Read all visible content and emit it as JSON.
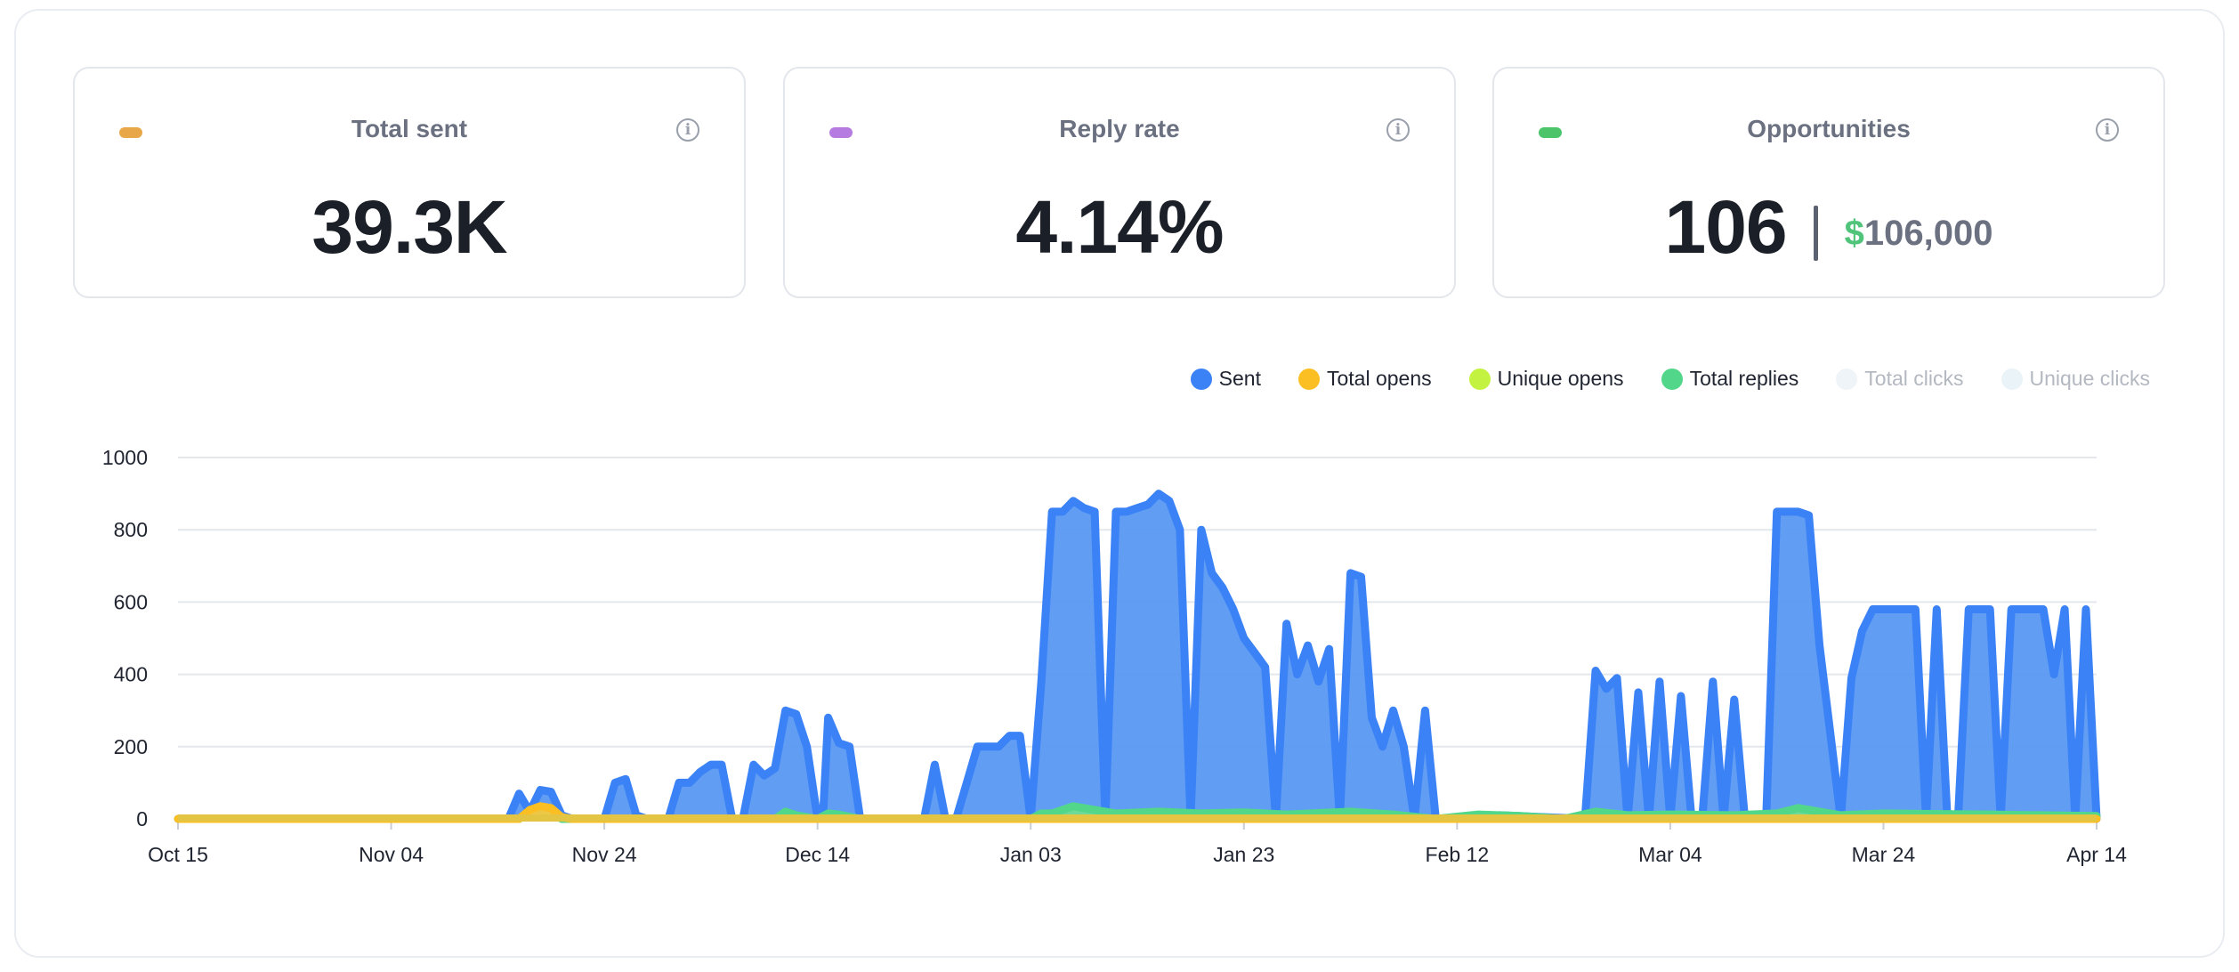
{
  "cards": [
    {
      "title": "Total sent",
      "value": "39.3K",
      "color": "#e8a84a"
    },
    {
      "title": "Reply rate",
      "value": "4.14%",
      "color": "#b57be0"
    },
    {
      "title": "Opportunities",
      "value": "106",
      "money_symbol": "$",
      "money_value": "106,000",
      "color": "#4cc46a"
    }
  ],
  "info_glyph": "i",
  "legend": [
    {
      "label": "Sent",
      "color": "#3b82f6",
      "active": true
    },
    {
      "label": "Total opens",
      "color": "#fbbf24",
      "active": true
    },
    {
      "label": "Unique opens",
      "color": "#c4f240",
      "active": true
    },
    {
      "label": "Total replies",
      "color": "#52d68a",
      "active": true
    },
    {
      "label": "Total clicks",
      "color": "#eef4f8",
      "active": false
    },
    {
      "label": "Unique clicks",
      "color": "#eaf3f8",
      "active": false
    }
  ],
  "chart_data": {
    "type": "area",
    "ylim": [
      0,
      1000
    ],
    "y_ticks": [
      0,
      200,
      400,
      600,
      800,
      1000
    ],
    "x_tick_labels": [
      "Oct 15",
      "Nov 04",
      "Nov 24",
      "Dec 14",
      "Jan 03",
      "Jan 23",
      "Feb 12",
      "Mar 04",
      "Mar 24",
      "Apr 14"
    ],
    "x_ticks_day": [
      0,
      20,
      40,
      60,
      80,
      100,
      120,
      140,
      160,
      180
    ],
    "grid": true,
    "legend_position": "top-right",
    "series": [
      {
        "name": "Sent",
        "color": "#3b82f6",
        "points": [
          [
            0,
            0
          ],
          [
            31,
            0
          ],
          [
            32,
            70
          ],
          [
            33,
            20
          ],
          [
            34,
            80
          ],
          [
            35,
            75
          ],
          [
            36,
            10
          ],
          [
            37,
            0
          ],
          [
            40,
            0
          ],
          [
            41,
            100
          ],
          [
            42,
            110
          ],
          [
            43,
            10
          ],
          [
            44,
            0
          ],
          [
            46,
            0
          ],
          [
            47,
            100
          ],
          [
            48,
            100
          ],
          [
            49,
            130
          ],
          [
            50,
            150
          ],
          [
            51,
            150
          ],
          [
            52,
            0
          ],
          [
            53,
            0
          ],
          [
            54,
            150
          ],
          [
            55,
            120
          ],
          [
            56,
            140
          ],
          [
            57,
            300
          ],
          [
            58,
            290
          ],
          [
            59,
            200
          ],
          [
            60,
            0
          ],
          [
            60.5,
            0
          ],
          [
            61,
            280
          ],
          [
            62,
            210
          ],
          [
            63,
            200
          ],
          [
            64,
            0
          ],
          [
            70,
            0
          ],
          [
            71,
            150
          ],
          [
            72,
            0
          ],
          [
            73,
            0
          ],
          [
            74,
            100
          ],
          [
            75,
            200
          ],
          [
            76,
            200
          ],
          [
            77,
            200
          ],
          [
            78,
            230
          ],
          [
            79,
            230
          ],
          [
            80,
            0
          ],
          [
            81,
            380
          ],
          [
            82,
            850
          ],
          [
            83,
            850
          ],
          [
            84,
            880
          ],
          [
            85,
            860
          ],
          [
            86,
            850
          ],
          [
            87,
            0
          ],
          [
            88,
            850
          ],
          [
            89,
            850
          ],
          [
            90,
            860
          ],
          [
            91,
            870
          ],
          [
            92,
            900
          ],
          [
            93,
            880
          ],
          [
            94,
            800
          ],
          [
            95,
            0
          ],
          [
            96,
            800
          ],
          [
            97,
            680
          ],
          [
            98,
            640
          ],
          [
            99,
            580
          ],
          [
            100,
            500
          ],
          [
            101,
            460
          ],
          [
            102,
            420
          ],
          [
            103,
            0
          ],
          [
            104,
            540
          ],
          [
            105,
            400
          ],
          [
            106,
            480
          ],
          [
            107,
            380
          ],
          [
            108,
            470
          ],
          [
            109,
            0
          ],
          [
            110,
            680
          ],
          [
            111,
            670
          ],
          [
            112,
            280
          ],
          [
            113,
            200
          ],
          [
            114,
            300
          ],
          [
            115,
            200
          ],
          [
            116,
            0
          ],
          [
            117,
            300
          ],
          [
            118,
            0
          ],
          [
            119,
            0
          ],
          [
            121,
            0
          ],
          [
            122,
            5
          ],
          [
            124,
            10
          ],
          [
            128,
            5
          ],
          [
            132,
            0
          ],
          [
            133,
            410
          ],
          [
            134,
            360
          ],
          [
            135,
            390
          ],
          [
            136,
            0
          ],
          [
            137,
            350
          ],
          [
            138,
            0
          ],
          [
            139,
            380
          ],
          [
            140,
            0
          ],
          [
            141,
            340
          ],
          [
            142,
            0
          ],
          [
            143,
            0
          ],
          [
            144,
            380
          ],
          [
            145,
            0
          ],
          [
            146,
            330
          ],
          [
            147,
            0
          ],
          [
            149,
            0
          ],
          [
            150,
            850
          ],
          [
            151,
            850
          ],
          [
            152,
            850
          ],
          [
            153,
            840
          ],
          [
            154,
            480
          ],
          [
            155,
            240
          ],
          [
            156,
            0
          ],
          [
            157,
            390
          ],
          [
            158,
            520
          ],
          [
            159,
            580
          ],
          [
            160,
            580
          ],
          [
            161,
            580
          ],
          [
            162,
            580
          ],
          [
            163,
            580
          ],
          [
            164,
            0
          ],
          [
            165,
            580
          ],
          [
            166,
            0
          ],
          [
            167,
            0
          ],
          [
            168,
            580
          ],
          [
            169,
            580
          ],
          [
            170,
            580
          ],
          [
            171,
            0
          ],
          [
            172,
            580
          ],
          [
            173,
            580
          ],
          [
            174,
            580
          ],
          [
            175,
            580
          ],
          [
            176,
            400
          ],
          [
            177,
            580
          ],
          [
            178,
            0
          ],
          [
            179,
            580
          ],
          [
            180,
            0
          ]
        ]
      },
      {
        "name": "Total replies",
        "color": "#52d68a",
        "points": [
          [
            0,
            0
          ],
          [
            32,
            0
          ],
          [
            33,
            20
          ],
          [
            34,
            25
          ],
          [
            35,
            18
          ],
          [
            36,
            0
          ],
          [
            56,
            0
          ],
          [
            57,
            20
          ],
          [
            58,
            10
          ],
          [
            60,
            0
          ],
          [
            61,
            15
          ],
          [
            62,
            12
          ],
          [
            64,
            0
          ],
          [
            80,
            0
          ],
          [
            81,
            15
          ],
          [
            82,
            15
          ],
          [
            84,
            35
          ],
          [
            86,
            25
          ],
          [
            88,
            15
          ],
          [
            92,
            20
          ],
          [
            96,
            15
          ],
          [
            100,
            18
          ],
          [
            104,
            12
          ],
          [
            110,
            20
          ],
          [
            114,
            12
          ],
          [
            118,
            0
          ],
          [
            122,
            12
          ],
          [
            126,
            8
          ],
          [
            130,
            0
          ],
          [
            133,
            20
          ],
          [
            136,
            10
          ],
          [
            140,
            12
          ],
          [
            146,
            10
          ],
          [
            150,
            15
          ],
          [
            152,
            30
          ],
          [
            154,
            20
          ],
          [
            156,
            10
          ],
          [
            160,
            15
          ],
          [
            170,
            12
          ],
          [
            180,
            8
          ]
        ]
      },
      {
        "name": "Total opens",
        "color": "#fbbf24",
        "points": [
          [
            0,
            0
          ],
          [
            32,
            0
          ],
          [
            33,
            25
          ],
          [
            34,
            35
          ],
          [
            35,
            30
          ],
          [
            36,
            5
          ],
          [
            37,
            0
          ],
          [
            180,
            0
          ]
        ]
      }
    ]
  }
}
